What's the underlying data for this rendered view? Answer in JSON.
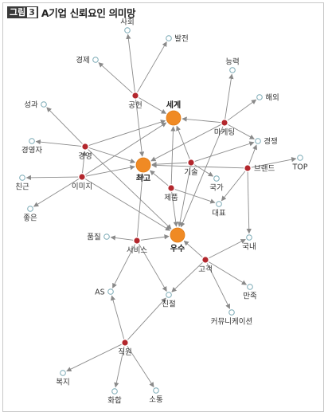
{
  "figure": {
    "badge": "그림",
    "number": "3",
    "title": "A기업 신뢰요인 의미망"
  },
  "colors": {
    "edge": "#8a8a8a",
    "hub_fill": "#f08a24",
    "red_fill": "#b3272d",
    "leaf_fill": "#ffffff",
    "leaf_stroke": "#7aa9b5"
  },
  "nodes": [
    {
      "id": "sehoe",
      "label": "사회",
      "type": "leaf"
    },
    {
      "id": "baljeon",
      "label": "발전",
      "type": "leaf"
    },
    {
      "id": "gyeongje",
      "label": "경제",
      "type": "leaf"
    },
    {
      "id": "neungnyeok",
      "label": "능력",
      "type": "leaf"
    },
    {
      "id": "haeoe",
      "label": "해외",
      "type": "leaf"
    },
    {
      "id": "seonggwa",
      "label": "성과",
      "type": "leaf"
    },
    {
      "id": "gongheon",
      "label": "공헌",
      "type": "red"
    },
    {
      "id": "segye",
      "label": "세계",
      "type": "hub"
    },
    {
      "id": "marketing",
      "label": "마케팅",
      "type": "red"
    },
    {
      "id": "gyeongjaeng",
      "label": "경쟁",
      "type": "leaf"
    },
    {
      "id": "gyeongyeongja",
      "label": "경영자",
      "type": "leaf"
    },
    {
      "id": "gyeongyeong",
      "label": "경영",
      "type": "red"
    },
    {
      "id": "top",
      "label": "TOP",
      "type": "leaf"
    },
    {
      "id": "choego",
      "label": "최고",
      "type": "hub"
    },
    {
      "id": "gisul",
      "label": "기술",
      "type": "red"
    },
    {
      "id": "brand",
      "label": "브랜드",
      "type": "red"
    },
    {
      "id": "chingeun",
      "label": "친근",
      "type": "leaf"
    },
    {
      "id": "imiji",
      "label": "이미지",
      "type": "red"
    },
    {
      "id": "gukga",
      "label": "국가",
      "type": "leaf"
    },
    {
      "id": "jepum",
      "label": "제품",
      "type": "red"
    },
    {
      "id": "daepyo",
      "label": "대표",
      "type": "leaf"
    },
    {
      "id": "joeun",
      "label": "좋은",
      "type": "leaf"
    },
    {
      "id": "pumjil",
      "label": "품질",
      "type": "leaf"
    },
    {
      "id": "service",
      "label": "서비스",
      "type": "red"
    },
    {
      "id": "usu",
      "label": "우수",
      "type": "hub"
    },
    {
      "id": "guknae",
      "label": "국내",
      "type": "leaf"
    },
    {
      "id": "gogaek",
      "label": "고객",
      "type": "red"
    },
    {
      "id": "as",
      "label": "AS",
      "type": "leaf"
    },
    {
      "id": "chinjeol",
      "label": "친절",
      "type": "leaf"
    },
    {
      "id": "manjok",
      "label": "만족",
      "type": "leaf"
    },
    {
      "id": "communication",
      "label": "커뮤니케이션",
      "type": "leaf"
    },
    {
      "id": "jigwon",
      "label": "직원",
      "type": "red"
    },
    {
      "id": "bokji",
      "label": "복지",
      "type": "leaf"
    },
    {
      "id": "hwahap",
      "label": "화합",
      "type": "leaf"
    },
    {
      "id": "sotong",
      "label": "소통",
      "type": "leaf"
    }
  ],
  "edges": [
    [
      "gongheon",
      "sehoe"
    ],
    [
      "gongheon",
      "baljeon"
    ],
    [
      "gongheon",
      "gyeongje"
    ],
    [
      "gongheon",
      "segye"
    ],
    [
      "gongheon",
      "choego"
    ],
    [
      "marketing",
      "neungnyeok"
    ],
    [
      "marketing",
      "haeoe"
    ],
    [
      "marketing",
      "gyeongjaeng"
    ],
    [
      "marketing",
      "segye"
    ],
    [
      "marketing",
      "choego"
    ],
    [
      "marketing",
      "usu"
    ],
    [
      "gyeongyeong",
      "seonggwa"
    ],
    [
      "gyeongyeong",
      "gyeongyeongja"
    ],
    [
      "gyeongyeong",
      "segye"
    ],
    [
      "gyeongyeong",
      "choego"
    ],
    [
      "gyeongyeong",
      "usu"
    ],
    [
      "imiji",
      "chingeun"
    ],
    [
      "imiji",
      "joeun"
    ],
    [
      "imiji",
      "gyeongyeong"
    ],
    [
      "imiji",
      "segye"
    ],
    [
      "imiji",
      "choego"
    ],
    [
      "imiji",
      "usu"
    ],
    [
      "gisul",
      "segye"
    ],
    [
      "gisul",
      "choego"
    ],
    [
      "gisul",
      "usu"
    ],
    [
      "gisul",
      "gukga"
    ],
    [
      "gisul",
      "gyeongjaeng"
    ],
    [
      "brand",
      "top"
    ],
    [
      "brand",
      "gyeongjaeng"
    ],
    [
      "brand",
      "guknae"
    ],
    [
      "brand",
      "daepyo"
    ],
    [
      "brand",
      "choego"
    ],
    [
      "jepum",
      "choego"
    ],
    [
      "jepum",
      "daepyo"
    ],
    [
      "jepum",
      "usu"
    ],
    [
      "jepum",
      "segye"
    ],
    [
      "service",
      "pumjil"
    ],
    [
      "service",
      "choego"
    ],
    [
      "service",
      "usu"
    ],
    [
      "service",
      "as"
    ],
    [
      "service",
      "chinjeol"
    ],
    [
      "gogaek",
      "guknae"
    ],
    [
      "gogaek",
      "usu"
    ],
    [
      "gogaek",
      "manjok"
    ],
    [
      "gogaek",
      "communication"
    ],
    [
      "gogaek",
      "chinjeol"
    ],
    [
      "jigwon",
      "as"
    ],
    [
      "jigwon",
      "chinjeol"
    ],
    [
      "jigwon",
      "bokji"
    ],
    [
      "jigwon",
      "hwahap"
    ],
    [
      "jigwon",
      "sotong"
    ]
  ]
}
